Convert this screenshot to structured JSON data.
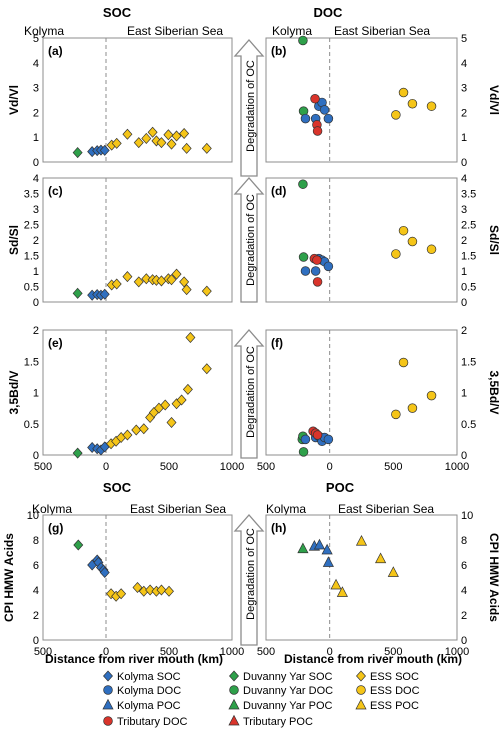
{
  "colors": {
    "kolyma": "#2f6fc0",
    "duvanny": "#2ea04a",
    "tributary": "#d9342b",
    "ess": "#f5c518",
    "grid": "#8c8c8c",
    "arrow_fill": "#ffffff",
    "arrow_stroke": "#8c8c8c"
  },
  "labels": {
    "soc_header": "SOC",
    "doc_header": "DOC",
    "poc_header": "POC",
    "kolyma": "Kolyma",
    "ess": "East Siberian Sea",
    "degradation": "Degradation of OC",
    "xlabel": "Distance from river mouth (km)"
  },
  "legend": [
    {
      "label": "Kolyma SOC",
      "marker": "diamond",
      "color": "kolyma"
    },
    {
      "label": "Duvanny Yar SOC",
      "marker": "diamond",
      "color": "duvanny"
    },
    {
      "label": "ESS SOC",
      "marker": "diamond",
      "color": "ess"
    },
    {
      "label": "Kolyma DOC",
      "marker": "circle",
      "color": "kolyma"
    },
    {
      "label": "Duvanny Yar DOC",
      "marker": "circle",
      "color": "duvanny"
    },
    {
      "label": "ESS DOC",
      "marker": "circle",
      "color": "ess"
    },
    {
      "label": "Kolyma POC",
      "marker": "triangle",
      "color": "kolyma"
    },
    {
      "label": "Duvanny Yar POC",
      "marker": "triangle",
      "color": "duvanny"
    },
    {
      "label": "ESS POC",
      "marker": "triangle",
      "color": "ess"
    },
    {
      "label": "Tributary DOC",
      "marker": "circle",
      "color": "tributary"
    },
    {
      "label": "Tributary POC",
      "marker": "triangle",
      "color": "tributary"
    }
  ],
  "chart_data": [
    {
      "type": "scatter",
      "id": "a",
      "panel_label": "(a)",
      "ylabel": "Vd/Vl",
      "xlim": [
        -500,
        1000
      ],
      "ylim": [
        0,
        5
      ],
      "yticks": [
        "0",
        "1",
        "2",
        "3",
        "4",
        "5"
      ],
      "xticks": [
        "500",
        "0",
        "500",
        "1000"
      ],
      "series": [
        {
          "name": "Duvanny Yar SOC",
          "marker": "diamond",
          "color": "duvanny",
          "x": [
            -225
          ],
          "y": [
            0.38
          ]
        },
        {
          "name": "Kolyma SOC",
          "marker": "diamond",
          "color": "kolyma",
          "x": [
            -110,
            -70,
            -40,
            -10
          ],
          "y": [
            0.42,
            0.46,
            0.48,
            0.47
          ]
        },
        {
          "name": "ESS SOC",
          "marker": "diamond",
          "color": "ess",
          "x": [
            45,
            85,
            170,
            260,
            320,
            370,
            400,
            440,
            495,
            520,
            560,
            620,
            640,
            800
          ],
          "y": [
            0.68,
            0.75,
            1.12,
            0.78,
            0.95,
            1.2,
            0.85,
            0.78,
            1.1,
            0.72,
            1.05,
            1.15,
            0.55,
            0.55
          ]
        }
      ]
    },
    {
      "type": "scatter",
      "id": "b",
      "panel_label": "(b)",
      "ylabel": "Vd/Vl",
      "xlim": [
        -500,
        1000
      ],
      "ylim": [
        0,
        5
      ],
      "yticks": [
        "0",
        "1",
        "2",
        "3",
        "4",
        "5"
      ],
      "xticks": [
        "500",
        "0",
        "500",
        "1000"
      ],
      "series": [
        {
          "name": "Duvanny Yar DOC",
          "marker": "circle",
          "color": "duvanny",
          "x": [
            -210,
            -205
          ],
          "y": [
            4.9,
            2.05
          ]
        },
        {
          "name": "Kolyma DOC",
          "marker": "circle",
          "color": "kolyma",
          "x": [
            -190,
            -110,
            -85,
            -60,
            -40,
            -10
          ],
          "y": [
            1.75,
            1.75,
            2.25,
            2.4,
            2.1,
            1.75
          ]
        },
        {
          "name": "Tributary DOC",
          "marker": "circle",
          "color": "tributary",
          "x": [
            -115,
            -100,
            -95
          ],
          "y": [
            2.55,
            1.5,
            1.25
          ]
        },
        {
          "name": "ESS DOC",
          "marker": "circle",
          "color": "ess",
          "x": [
            520,
            580,
            650,
            800
          ],
          "y": [
            1.9,
            2.8,
            2.35,
            2.25
          ]
        }
      ]
    },
    {
      "type": "scatter",
      "id": "c",
      "panel_label": "(c)",
      "ylabel": "Sd/Sl",
      "xlim": [
        -500,
        1000
      ],
      "ylim": [
        0,
        4
      ],
      "yticks": [
        "0",
        "0.5",
        "1",
        "1.5",
        "2",
        "2.5",
        "3",
        "3.5",
        "4"
      ],
      "xticks": [
        "500",
        "0",
        "500",
        "1000"
      ],
      "series": [
        {
          "name": "Duvanny Yar SOC",
          "marker": "diamond",
          "color": "duvanny",
          "x": [
            -225
          ],
          "y": [
            0.28
          ]
        },
        {
          "name": "Kolyma SOC",
          "marker": "diamond",
          "color": "kolyma",
          "x": [
            -110,
            -70,
            -40,
            -10
          ],
          "y": [
            0.22,
            0.24,
            0.22,
            0.25
          ]
        },
        {
          "name": "ESS SOC",
          "marker": "diamond",
          "color": "ess",
          "x": [
            45,
            85,
            170,
            260,
            320,
            370,
            400,
            440,
            495,
            520,
            560,
            620,
            640,
            800
          ],
          "y": [
            0.55,
            0.58,
            0.82,
            0.65,
            0.75,
            0.72,
            0.7,
            0.68,
            0.75,
            0.72,
            0.9,
            0.65,
            0.4,
            0.35
          ]
        }
      ]
    },
    {
      "type": "scatter",
      "id": "d",
      "panel_label": "(d)",
      "ylabel": "Sd/Sl",
      "xlim": [
        -500,
        1000
      ],
      "ylim": [
        0,
        4
      ],
      "yticks": [
        "0",
        "0.5",
        "1",
        "1.5",
        "2",
        "2.5",
        "3",
        "3.5",
        "4"
      ],
      "xticks": [
        "500",
        "0",
        "500",
        "1000"
      ],
      "series": [
        {
          "name": "Duvanny Yar DOC",
          "marker": "circle",
          "color": "duvanny",
          "x": [
            -210,
            -205
          ],
          "y": [
            3.8,
            1.45
          ]
        },
        {
          "name": "Kolyma DOC",
          "marker": "circle",
          "color": "kolyma",
          "x": [
            -190,
            -110,
            -85,
            -60,
            -40,
            -10
          ],
          "y": [
            1.0,
            1.0,
            1.4,
            1.35,
            1.3,
            1.15
          ]
        },
        {
          "name": "Tributary DOC",
          "marker": "circle",
          "color": "tributary",
          "x": [
            -120,
            -100,
            -95
          ],
          "y": [
            1.4,
            1.35,
            0.65
          ]
        },
        {
          "name": "ESS DOC",
          "marker": "circle",
          "color": "ess",
          "x": [
            520,
            580,
            650,
            800
          ],
          "y": [
            1.55,
            2.3,
            1.95,
            1.7
          ]
        }
      ]
    },
    {
      "type": "scatter",
      "id": "e",
      "panel_label": "(e)",
      "ylabel": "3,5Bd/V",
      "xlim": [
        -500,
        1000
      ],
      "ylim": [
        0,
        2
      ],
      "yticks": [
        "0",
        "0.5",
        "1",
        "1.5",
        "2"
      ],
      "xticks": [
        "500",
        "0",
        "500",
        "1000"
      ],
      "series": [
        {
          "name": "Duvanny Yar SOC",
          "marker": "diamond",
          "color": "duvanny",
          "x": [
            -225
          ],
          "y": [
            0.03
          ]
        },
        {
          "name": "Kolyma SOC",
          "marker": "diamond",
          "color": "kolyma",
          "x": [
            -110,
            -70,
            -40,
            -10
          ],
          "y": [
            0.12,
            0.1,
            0.08,
            0.13
          ]
        },
        {
          "name": "ESS SOC",
          "marker": "diamond",
          "color": "ess",
          "x": [
            40,
            80,
            120,
            170,
            240,
            300,
            350,
            380,
            420,
            470,
            520,
            560,
            600,
            650,
            670,
            800
          ],
          "y": [
            0.18,
            0.22,
            0.28,
            0.32,
            0.4,
            0.42,
            0.6,
            0.68,
            0.75,
            0.8,
            0.52,
            0.82,
            0.88,
            1.05,
            1.88,
            1.38
          ]
        }
      ]
    },
    {
      "type": "scatter",
      "id": "f",
      "panel_label": "(f)",
      "ylabel": "3,5Bd/V",
      "xlim": [
        -500,
        1000
      ],
      "ylim": [
        0,
        2
      ],
      "yticks": [
        "0",
        "0.5",
        "1",
        "1.5",
        "2"
      ],
      "xticks": [
        "500",
        "0",
        "500",
        "1000"
      ],
      "series": [
        {
          "name": "Duvanny Yar DOC",
          "marker": "circle",
          "color": "duvanny",
          "x": [
            -215,
            -210,
            -205
          ],
          "y": [
            0.25,
            0.3,
            0.05
          ]
        },
        {
          "name": "Kolyma DOC",
          "marker": "circle",
          "color": "kolyma",
          "x": [
            -190,
            -110,
            -85,
            -60,
            -40,
            -10
          ],
          "y": [
            0.25,
            0.28,
            0.3,
            0.22,
            0.28,
            0.25
          ]
        },
        {
          "name": "Tributary DOC",
          "marker": "circle",
          "color": "tributary",
          "x": [
            -130,
            -110,
            -95
          ],
          "y": [
            0.38,
            0.35,
            0.32
          ]
        },
        {
          "name": "ESS DOC",
          "marker": "circle",
          "color": "ess",
          "x": [
            520,
            580,
            650,
            800
          ],
          "y": [
            0.65,
            1.48,
            0.75,
            0.95
          ]
        }
      ]
    },
    {
      "type": "scatter",
      "id": "g",
      "panel_label": "(g)",
      "ylabel": "CPI HMW Acids",
      "xlabel": "Distance from river mouth (km)",
      "xlim": [
        -500,
        1000
      ],
      "ylim": [
        0,
        10
      ],
      "yticks": [
        "0",
        "2",
        "4",
        "6",
        "8",
        "10"
      ],
      "xticks": [
        "500",
        "0",
        "500",
        "1000"
      ],
      "series": [
        {
          "name": "Duvanny Yar SOC",
          "marker": "diamond",
          "color": "duvanny",
          "x": [
            -220
          ],
          "y": [
            7.6
          ]
        },
        {
          "name": "Kolyma SOC",
          "marker": "diamond",
          "color": "kolyma",
          "x": [
            -110,
            -70,
            -60,
            -40,
            -20,
            -10
          ],
          "y": [
            6.0,
            6.4,
            6.2,
            5.8,
            5.6,
            5.4
          ]
        },
        {
          "name": "ESS SOC",
          "marker": "diamond",
          "color": "ess",
          "x": [
            40,
            80,
            120,
            250,
            300,
            350,
            400,
            440,
            500
          ],
          "y": [
            3.7,
            3.5,
            3.7,
            4.2,
            3.9,
            4.0,
            3.9,
            4.0,
            3.9
          ]
        }
      ]
    },
    {
      "type": "scatter",
      "id": "h",
      "panel_label": "(h)",
      "ylabel": "CPI HMW Acids",
      "xlabel": "Distance from river mouth (km)",
      "xlim": [
        -500,
        1000
      ],
      "ylim": [
        0,
        10
      ],
      "yticks": [
        "0",
        "2",
        "4",
        "6",
        "8",
        "10"
      ],
      "xticks": [
        "500",
        "0",
        "500",
        "1000"
      ],
      "series": [
        {
          "name": "Duvanny Yar POC",
          "marker": "triangle",
          "color": "duvanny",
          "x": [
            -210
          ],
          "y": [
            7.3
          ]
        },
        {
          "name": "Kolyma POC",
          "marker": "triangle",
          "color": "kolyma",
          "x": [
            -120,
            -80,
            -20,
            -10
          ],
          "y": [
            7.5,
            7.6,
            7.2,
            6.2
          ]
        },
        {
          "name": "ESS POC",
          "marker": "triangle",
          "color": "ess",
          "x": [
            50,
            100,
            250,
            400,
            500
          ],
          "y": [
            4.4,
            3.8,
            7.9,
            6.5,
            5.4
          ]
        }
      ]
    }
  ]
}
